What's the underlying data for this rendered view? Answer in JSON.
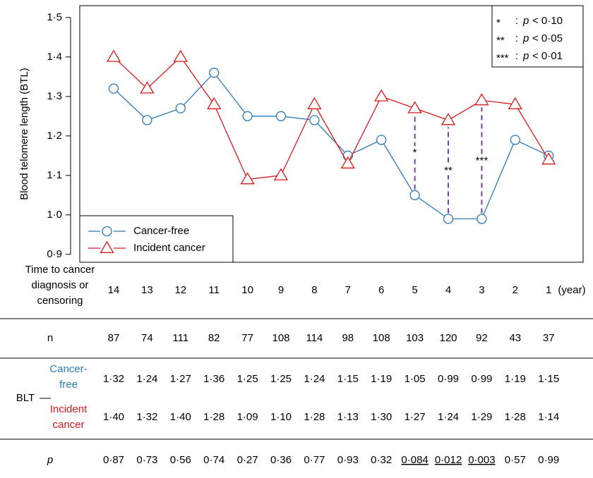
{
  "chart_data": {
    "type": "line",
    "y_axis_label": "Blood telomere length (BTL)",
    "x_axis_label": "Time to cancer diagnosis or censoring",
    "x_unit": "(year)",
    "categories": [
      "14",
      "13",
      "12",
      "11",
      "10",
      "9",
      "8",
      "7",
      "6",
      "5",
      "4",
      "3",
      "2",
      "1"
    ],
    "series": [
      {
        "name": "Cancer-free",
        "color": "#2b7bb9",
        "marker": "circle",
        "values": [
          1.32,
          1.24,
          1.27,
          1.36,
          1.25,
          1.25,
          1.24,
          1.15,
          1.19,
          1.05,
          0.99,
          0.99,
          1.19,
          1.15
        ],
        "value_labels": [
          "1·32",
          "1·24",
          "1·27",
          "1·36",
          "1·25",
          "1·25",
          "1·24",
          "1·15",
          "1·19",
          "1·05",
          "0·99",
          "0·99",
          "1·19",
          "1·15"
        ]
      },
      {
        "name": "Incident cancer",
        "color": "#d7191c",
        "marker": "triangle",
        "values": [
          1.4,
          1.32,
          1.4,
          1.28,
          1.09,
          1.1,
          1.28,
          1.13,
          1.3,
          1.27,
          1.24,
          1.29,
          1.28,
          1.14
        ],
        "value_labels": [
          "1·40",
          "1·32",
          "1·40",
          "1·28",
          "1·09",
          "1·10",
          "1·28",
          "1·13",
          "1·30",
          "1·27",
          "1·24",
          "1·29",
          "1·28",
          "1·14"
        ]
      }
    ],
    "ylim": [
      0.88,
      1.53
    ],
    "yticks": [
      {
        "value": 0.9,
        "label": "0·9"
      },
      {
        "value": 1.0,
        "label": "1·0"
      },
      {
        "value": 1.1,
        "label": "1·1"
      },
      {
        "value": 1.2,
        "label": "1·2"
      },
      {
        "value": 1.3,
        "label": "1·3"
      },
      {
        "value": 1.4,
        "label": "1·4"
      },
      {
        "value": 1.5,
        "label": "1·5"
      }
    ],
    "legend": "bottom-left",
    "significance_color": "#7b3fa0",
    "significance": [
      {
        "category": "5",
        "label": "*"
      },
      {
        "category": "4",
        "label": "**"
      },
      {
        "category": "3",
        "label": "***"
      }
    ],
    "significance_key_position": "top-right",
    "significance_key": [
      {
        "symbol": "*",
        "separator": ":",
        "variable": "p",
        "condition": "< 0·10"
      },
      {
        "symbol": "**",
        "separator": ":",
        "variable": "p",
        "condition": "< 0·05"
      },
      {
        "symbol": "***",
        "separator": ":",
        "variable": "p",
        "condition": "< 0·01"
      }
    ]
  },
  "table": {
    "n_label": "n",
    "n": [
      87,
      74,
      111,
      82,
      77,
      108,
      114,
      98,
      108,
      103,
      120,
      92,
      43,
      37
    ],
    "blt_label": "BLT",
    "p_label": "p",
    "p": [
      "0·87",
      "0·73",
      "0·56",
      "0·74",
      "0·27",
      "0·36",
      "0·77",
      "0·93",
      "0·32",
      "0·084",
      "0·012",
      "0·003",
      "0·57",
      "0·99"
    ],
    "p_underlined": [
      false,
      false,
      false,
      false,
      false,
      false,
      false,
      false,
      false,
      true,
      true,
      true,
      false,
      false
    ]
  }
}
